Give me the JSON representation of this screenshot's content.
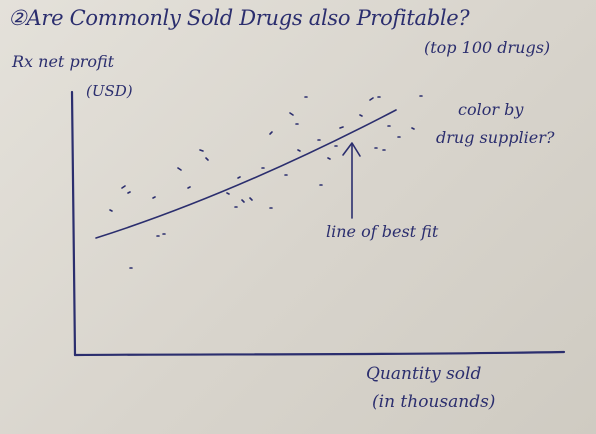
{
  "title": "②Are Commonly Sold Drugs also Profitable?",
  "subtitle": "(top 100 drugs)",
  "y_axis_label": {
    "line1": "Rx net profit",
    "line2": "(USD)"
  },
  "x_axis_label": {
    "line1": "Quantity sold",
    "line2": "(in thousands)"
  },
  "note": {
    "line1": "color by",
    "line2": "drug supplier?"
  },
  "annotation": "line of best fit",
  "ink_color": "#2b2e6e"
}
